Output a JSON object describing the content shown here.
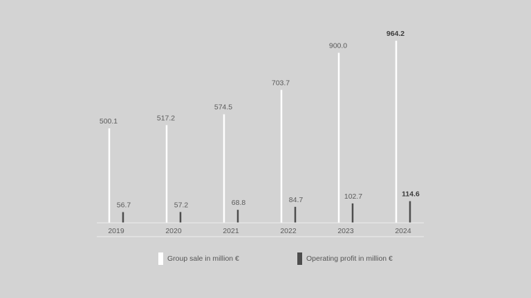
{
  "chart_data": {
    "type": "bar",
    "categories": [
      "2019",
      "2020",
      "2021",
      "2022",
      "2023",
      "2024"
    ],
    "series": [
      {
        "name": "Group sale in million €",
        "color": "#ffffff",
        "values": [
          500.1,
          517.2,
          574.5,
          703.7,
          900.0,
          964.2
        ],
        "labels": [
          "500.1",
          "517.2",
          "574.5",
          "703.7",
          "900.0",
          "964.2"
        ]
      },
      {
        "name": "Operating profit in million €",
        "color": "#4d4d4d",
        "values": [
          56.7,
          57.2,
          68.8,
          84.7,
          102.7,
          114.6
        ],
        "labels": [
          "56.7",
          "57.2",
          "68.8",
          "84.7",
          "102.7",
          "114.6"
        ]
      }
    ],
    "bold_category": "2024",
    "legend_position": "bottom",
    "grid": false
  }
}
